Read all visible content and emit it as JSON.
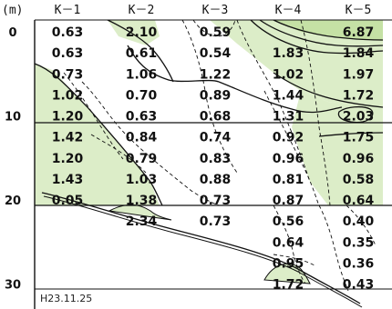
{
  "chart_data": {
    "type": "heatmap",
    "unit_label": "(m)",
    "columns": [
      "K－1",
      "K－2",
      "K－3",
      "K－4",
      "K－5"
    ],
    "depth_labels": [
      {
        "depth": 0,
        "label": "0"
      },
      {
        "depth": 10,
        "label": "10"
      },
      {
        "depth": 20,
        "label": "20"
      },
      {
        "depth": 30,
        "label": "30"
      }
    ],
    "ylim": [
      0,
      34
    ],
    "rows": [
      {
        "depth": 0,
        "values": [
          "0.63",
          "2.10",
          "0.59",
          "",
          "6.87"
        ]
      },
      {
        "depth": 2.5,
        "values": [
          "0.63",
          "0.61",
          "0.54",
          "1.83",
          "1.84"
        ]
      },
      {
        "depth": 5,
        "values": [
          "0.73",
          "1.06",
          "1.22",
          "1.02",
          "1.97"
        ]
      },
      {
        "depth": 7.5,
        "values": [
          "1.02",
          "0.70",
          "0.89",
          "1.44",
          "1.72"
        ]
      },
      {
        "depth": 10,
        "values": [
          "1.20",
          "0.63",
          "0.68",
          "1.31",
          "2.03"
        ]
      },
      {
        "depth": 12.5,
        "values": [
          "1.42",
          "0.84",
          "0.74",
          "0.92",
          "1.75"
        ]
      },
      {
        "depth": 15,
        "values": [
          "1.20",
          "0.79",
          "0.83",
          "0.96",
          "0.96"
        ]
      },
      {
        "depth": 17.5,
        "values": [
          "1.43",
          "1.03",
          "0.88",
          "0.81",
          "0.58"
        ]
      },
      {
        "depth": 20,
        "values": [
          "0.05",
          "1.38",
          "0.73",
          "0.87",
          "0.64"
        ]
      },
      {
        "depth": 22.5,
        "values": [
          "",
          "2.34",
          "0.73",
          "0.56",
          "0.40"
        ]
      },
      {
        "depth": 25,
        "values": [
          "",
          "",
          "",
          "0.64",
          "0.35"
        ]
      },
      {
        "depth": 27.5,
        "values": [
          "",
          "",
          "",
          "0.95",
          "0.36"
        ]
      },
      {
        "depth": 30,
        "values": [
          "",
          "",
          "",
          "1.72",
          "0.43"
        ]
      }
    ],
    "date_label": "H23.11.25",
    "colors": {
      "fill": "#dcedc8",
      "fill_dark": "#c5e1a5",
      "line": "#111111"
    }
  }
}
